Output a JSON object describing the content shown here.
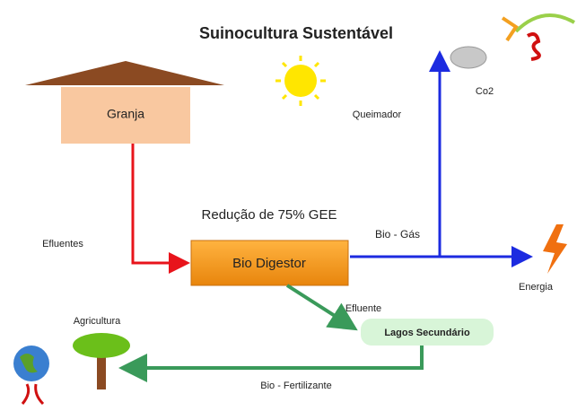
{
  "title": "Suinocultura Sustentável",
  "nodes": {
    "granja": "Granja",
    "bio_digestor": "Bio Digestor",
    "lagos": "Lagos Secundário",
    "co2": "Co2",
    "energia": "Energia",
    "agricultura": "Agricultura"
  },
  "annotation": "Redução de 75% GEE",
  "edges": {
    "efluentes": "Efluentes",
    "bio_gas": "Bio - Gás",
    "queimador": "Queimador",
    "efluente": "Efluente",
    "bio_fertilizante": "Bio - Fertilizante"
  }
}
